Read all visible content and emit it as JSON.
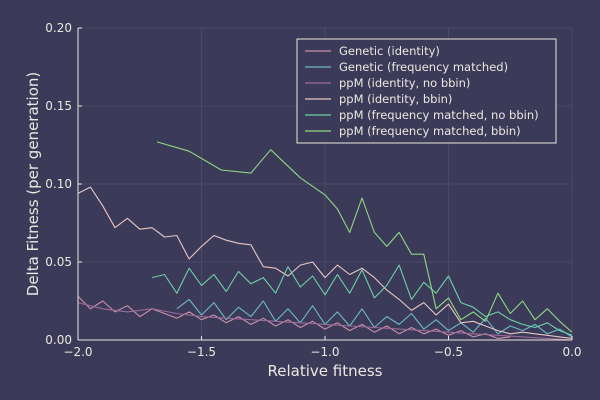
{
  "chart_data": {
    "type": "line",
    "title": "",
    "xlabel": "Relative fitness",
    "ylabel": "Delta Fitness (per generation)",
    "xlim": [
      -2.0,
      0.0
    ],
    "ylim": [
      0.0,
      0.2
    ],
    "xticks": [
      -2.0,
      -1.5,
      -1.0,
      -0.5,
      0.0
    ],
    "xtick_labels": [
      "−2.0",
      "−1.5",
      "−1.0",
      "−0.5",
      "0.0"
    ],
    "yticks": [
      0.0,
      0.05,
      0.1,
      0.15,
      0.2
    ],
    "ytick_labels": [
      "0.00",
      "0.05",
      "0.10",
      "0.15",
      "0.20"
    ],
    "grid": true,
    "legend_position": "top-right",
    "colors": {
      "background": "#3b3a58",
      "axis": "#ece8e0",
      "grid": "#4a4967"
    },
    "series": [
      {
        "name": "Genetic (identity)",
        "color": "#c890a8",
        "x": [
          -2.0,
          -1.95,
          -1.9,
          -1.85,
          -1.8,
          -1.75,
          -1.7,
          -1.65,
          -1.6,
          -1.55,
          -1.5,
          -1.45,
          -1.4,
          -1.35,
          -1.3,
          -1.25,
          -1.2,
          -1.15,
          -1.1,
          -1.05,
          -1.0,
          -0.95,
          -0.9,
          -0.85,
          -0.8,
          -0.75,
          -0.7,
          -0.65,
          -0.6,
          -0.55,
          -0.5,
          -0.45,
          -0.4,
          -0.35,
          -0.3,
          -0.25
        ],
        "y": [
          0.028,
          0.02,
          0.025,
          0.018,
          0.022,
          0.015,
          0.02,
          0.017,
          0.014,
          0.018,
          0.013,
          0.016,
          0.011,
          0.015,
          0.01,
          0.014,
          0.009,
          0.013,
          0.008,
          0.012,
          0.007,
          0.011,
          0.006,
          0.01,
          0.005,
          0.009,
          0.004,
          0.008,
          0.004,
          0.007,
          0.003,
          0.006,
          0.002,
          0.004,
          0.001,
          0.002
        ]
      },
      {
        "name": "Genetic (frequency matched)",
        "color": "#6db8c4",
        "x": [
          -1.6,
          -1.55,
          -1.5,
          -1.45,
          -1.4,
          -1.35,
          -1.3,
          -1.25,
          -1.2,
          -1.15,
          -1.1,
          -1.05,
          -1.0,
          -0.95,
          -0.9,
          -0.85,
          -0.8,
          -0.75,
          -0.7,
          -0.65,
          -0.6,
          -0.55,
          -0.5,
          -0.45,
          -0.4,
          -0.35,
          -0.3,
          -0.25,
          -0.2,
          -0.15,
          -0.1,
          -0.05,
          0.0
        ],
        "y": [
          0.02,
          0.026,
          0.016,
          0.024,
          0.013,
          0.021,
          0.015,
          0.025,
          0.012,
          0.02,
          0.011,
          0.022,
          0.01,
          0.018,
          0.009,
          0.02,
          0.008,
          0.015,
          0.01,
          0.017,
          0.007,
          0.013,
          0.006,
          0.011,
          0.005,
          0.014,
          0.004,
          0.009,
          0.006,
          0.01,
          0.004,
          0.007,
          0.002
        ]
      },
      {
        "name": "ppM (identity, no bbin)",
        "color": "#9a6c98",
        "x": [
          -2.0,
          -1.9,
          -1.8,
          -1.7,
          -1.6,
          -1.5,
          -1.4,
          -1.3,
          -1.2,
          -1.1,
          -1.0,
          -0.9,
          -0.8,
          -0.7,
          -0.6,
          -0.5,
          -0.4,
          -0.3,
          -0.2,
          -0.1,
          0.0
        ],
        "y": [
          0.024,
          0.02,
          0.018,
          0.02,
          0.017,
          0.015,
          0.014,
          0.013,
          0.012,
          0.011,
          0.01,
          0.009,
          0.008,
          0.007,
          0.006,
          0.005,
          0.004,
          0.003,
          0.002,
          0.001,
          0.0
        ]
      },
      {
        "name": "ppM (identity, bbin)",
        "color": "#e8c6c4",
        "x": [
          -2.0,
          -1.95,
          -1.9,
          -1.85,
          -1.8,
          -1.75,
          -1.7,
          -1.65,
          -1.6,
          -1.55,
          -1.5,
          -1.45,
          -1.4,
          -1.35,
          -1.3,
          -1.25,
          -1.2,
          -1.15,
          -1.1,
          -1.05,
          -1.0,
          -0.95,
          -0.9,
          -0.85,
          -0.8,
          -0.75,
          -0.7,
          -0.65,
          -0.6,
          -0.55,
          -0.5,
          -0.45,
          -0.4,
          -0.35,
          -0.3,
          -0.25,
          -0.2,
          -0.15,
          -0.1,
          -0.05,
          0.0
        ],
        "y": [
          0.094,
          0.098,
          0.086,
          0.072,
          0.078,
          0.071,
          0.072,
          0.066,
          0.067,
          0.052,
          0.06,
          0.067,
          0.064,
          0.062,
          0.061,
          0.047,
          0.046,
          0.041,
          0.048,
          0.05,
          0.04,
          0.048,
          0.042,
          0.046,
          0.04,
          0.032,
          0.026,
          0.019,
          0.024,
          0.016,
          0.023,
          0.011,
          0.012,
          0.009,
          0.006,
          0.004,
          0.005,
          0.004,
          0.003,
          0.002,
          0.001
        ]
      },
      {
        "name": "ppM (frequency matched, no bbin)",
        "color": "#6ed1a6",
        "x": [
          -1.7,
          -1.65,
          -1.6,
          -1.55,
          -1.5,
          -1.45,
          -1.4,
          -1.35,
          -1.3,
          -1.25,
          -1.2,
          -1.15,
          -1.1,
          -1.05,
          -1.0,
          -0.95,
          -0.9,
          -0.85,
          -0.8,
          -0.75,
          -0.7,
          -0.65,
          -0.6,
          -0.55,
          -0.5,
          -0.45,
          -0.4,
          -0.35,
          -0.3,
          -0.25,
          -0.2,
          -0.15,
          -0.1,
          -0.05,
          0.0
        ],
        "y": [
          0.04,
          0.042,
          0.03,
          0.046,
          0.035,
          0.042,
          0.031,
          0.044,
          0.036,
          0.04,
          0.03,
          0.047,
          0.034,
          0.041,
          0.029,
          0.042,
          0.03,
          0.045,
          0.027,
          0.035,
          0.048,
          0.026,
          0.037,
          0.03,
          0.041,
          0.024,
          0.021,
          0.015,
          0.018,
          0.013,
          0.01,
          0.008,
          0.011,
          0.006,
          0.003
        ]
      },
      {
        "name": "ppM (frequency matched, bbin)",
        "color": "#8fd882",
        "x": [
          -1.68,
          -1.55,
          -1.42,
          -1.3,
          -1.22,
          -1.1,
          -1.0,
          -0.95,
          -0.9,
          -0.85,
          -0.8,
          -0.75,
          -0.7,
          -0.65,
          -0.6,
          -0.55,
          -0.5,
          -0.45,
          -0.4,
          -0.35,
          -0.3,
          -0.25,
          -0.2,
          -0.15,
          -0.1,
          -0.05,
          0.0
        ],
        "y": [
          0.127,
          0.121,
          0.109,
          0.107,
          0.122,
          0.104,
          0.093,
          0.084,
          0.069,
          0.091,
          0.069,
          0.06,
          0.069,
          0.055,
          0.055,
          0.02,
          0.027,
          0.013,
          0.018,
          0.012,
          0.03,
          0.017,
          0.025,
          0.013,
          0.02,
          0.012,
          0.005
        ]
      }
    ]
  }
}
